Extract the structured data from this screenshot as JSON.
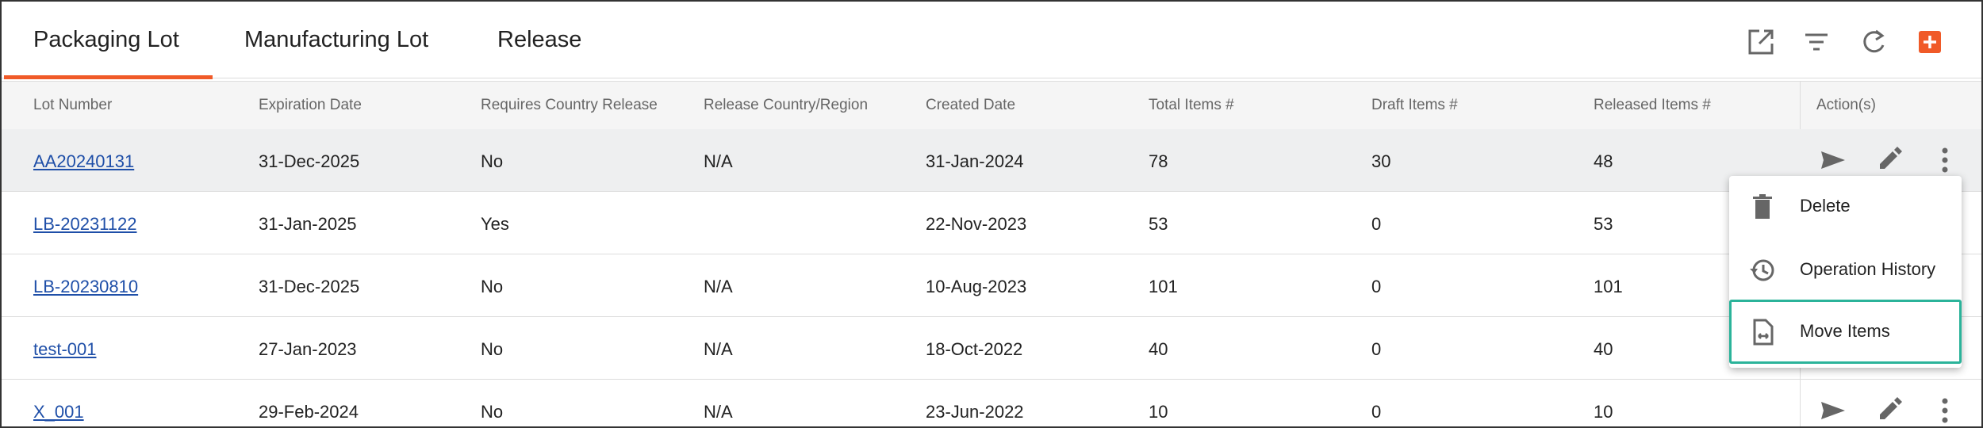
{
  "tabs": [
    "Packaging Lot",
    "Manufacturing Lot",
    "Release"
  ],
  "table": {
    "columns": [
      "Lot Number",
      "Expiration Date",
      "Requires Country Release",
      "Release Country/Region",
      "Created Date",
      "Total Items #",
      "Draft Items #",
      "Released Items #",
      "Action(s)"
    ],
    "rows": [
      [
        "AA20240131",
        "31-Dec-2025",
        "No",
        "N/A",
        "31-Jan-2024",
        "78",
        "30",
        "48"
      ],
      [
        "LB-20231122",
        "31-Jan-2025",
        "Yes",
        null,
        "22-Nov-2023",
        "53",
        "0",
        "53"
      ],
      [
        "LB-20230810",
        "31-Dec-2025",
        "No",
        "N/A",
        "10-Aug-2023",
        "101",
        "0",
        "101"
      ],
      [
        "test-001",
        "27-Jan-2023",
        "No",
        "N/A",
        "18-Oct-2022",
        "40",
        "0",
        "40"
      ],
      [
        "X_001",
        "29-Feb-2024",
        "No",
        "N/A",
        "23-Jun-2022",
        "10",
        "0",
        "10"
      ]
    ]
  },
  "menu": {
    "items": [
      "Delete",
      "Operation History",
      "Move Items"
    ]
  }
}
